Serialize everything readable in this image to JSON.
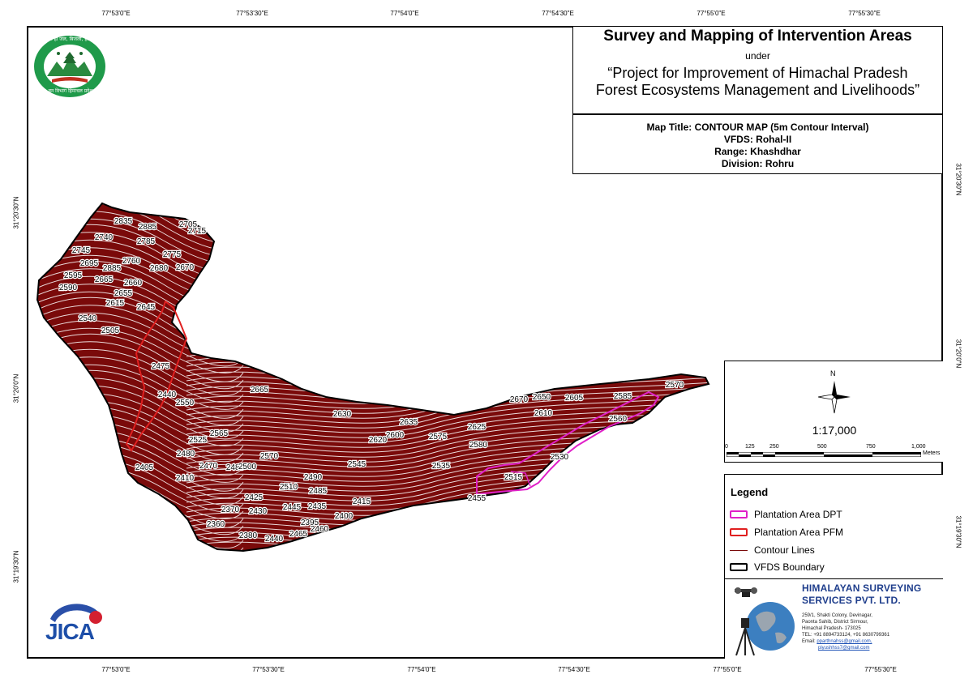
{
  "coords": {
    "top": [
      "77°53'0\"E",
      "77°53'30\"E",
      "77°54'0\"E",
      "77°54'30\"E",
      "77°55'0\"E",
      "77°55'30\"E"
    ],
    "bottom": [
      "77°53'0\"E",
      "77°53'30\"E",
      "77°54'0\"E",
      "77°54'30\"E",
      "77°55'0\"E",
      "77°55'30\"E"
    ],
    "left": [
      "31°20'30\"N",
      "31°20'0\"N",
      "31°19'30\"N"
    ],
    "right": [
      "31°20'30\"N",
      "31°20'0\"N",
      "31°19'30\"N"
    ]
  },
  "title": {
    "main": "Survey and Mapping of Intervention Areas",
    "under": "under",
    "project_line1": "“Project for Improvement of Himachal Pradesh",
    "project_line2": "Forest Ecosystems Management and Livelihoods”"
  },
  "info": {
    "map_title": "Map Title: CONTOUR MAP (5m Contour Interval)",
    "vfds": "VFDS: Rohal-II",
    "range": "Range: Khashdhar",
    "division": "Division: Rohru"
  },
  "scale": {
    "north": "N",
    "ratio": "1:17,000",
    "ticks": [
      "0",
      "125",
      "250",
      "500",
      "750",
      "1,000"
    ],
    "unit": "Meters"
  },
  "legend": {
    "title": "Legend",
    "items": [
      {
        "label": "Plantation Area DPT",
        "color": "#e020c8"
      },
      {
        "label": "Plantation Area PFM",
        "color": "#e02020"
      },
      {
        "label": "Contour Lines",
        "color": "#7a0a0a"
      },
      {
        "label": "VFDS Boundary",
        "color": "#000000"
      }
    ]
  },
  "company": {
    "name1": "HIMALAYAN SURVEYING",
    "name2": "SERVICES PVT. LTD.",
    "addr1": "259/1, Shakti Colony, Devinagar,",
    "addr2": "Paonta Sahib, District Sirmour,",
    "addr3": "Himachal Pradesh- 173025",
    "tel": "TEL: +91 8894733124, +91 8630799361",
    "email_label": "Email:",
    "email1": "pparthnahss@gmail.com,",
    "email2": "piyushhss7@gmail.com"
  },
  "logos": {
    "jica": "JICA",
    "hp_emblem_top": "वन ही जल, बिजली, हरियाली",
    "hp_emblem_bottom": "वन विभाग हिमाचल प्रदेश"
  },
  "contour_labels": [
    "2835",
    "2885",
    "2785",
    "2740",
    "2745",
    "2760",
    "2775",
    "2705",
    "2715",
    "2695",
    "2885",
    "2680",
    "2670",
    "2595",
    "2665",
    "2660",
    "2590",
    "2655",
    "2645",
    "2615",
    "2540",
    "2505",
    "2475",
    "2440",
    "2550",
    "2665",
    "2630",
    "2635",
    "2600",
    "2620",
    "2575",
    "2625",
    "2670",
    "2650",
    "2605",
    "2585",
    "2570",
    "2610",
    "2560",
    "2580",
    "2525",
    "2565",
    "2480",
    "2470",
    "2570",
    "2405",
    "2410",
    "2485",
    "2500",
    "2545",
    "2535",
    "2510",
    "2490",
    "2485",
    "2455",
    "2515",
    "2530",
    "2425",
    "2370",
    "2430",
    "2445",
    "2435",
    "2415",
    "2360",
    "2395",
    "2400",
    "2380",
    "2440",
    "2465",
    "2460"
  ],
  "colors": {
    "contour": "#7a0a0a",
    "dpt": "#e020c8",
    "pfm": "#e02020",
    "company_blue": "#1f3e8c"
  }
}
